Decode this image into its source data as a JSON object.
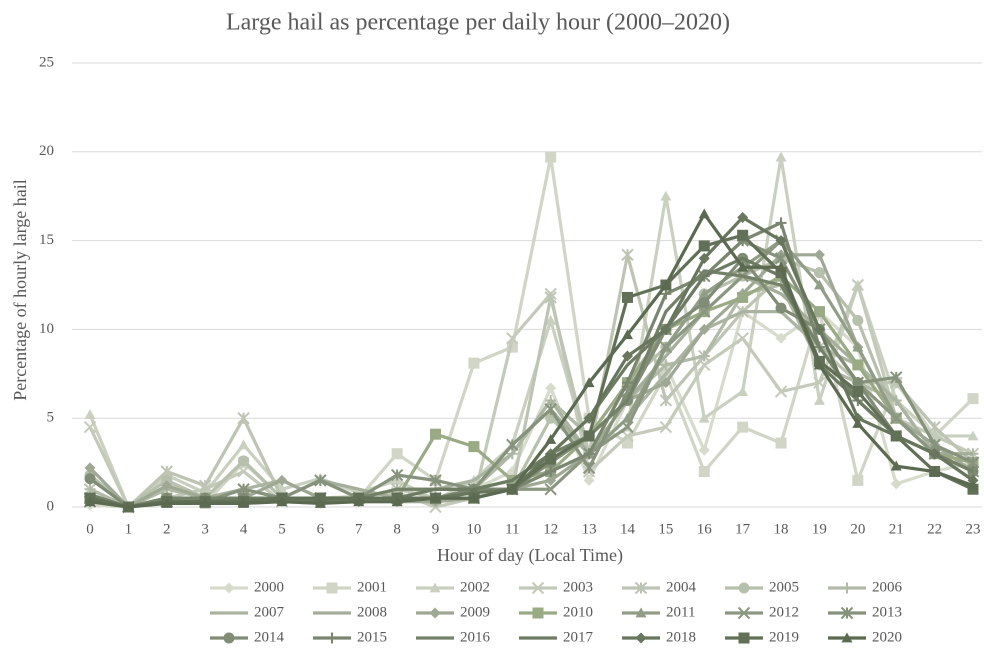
{
  "chart_data": {
    "type": "line",
    "title": "Large hail as percentage per daily hour (2000–2020)",
    "x_label": "Hour of day (Local Time)",
    "y_label": "Percentage of  hourly large hail",
    "categories": [
      "0",
      "1",
      "2",
      "3",
      "4",
      "5",
      "6",
      "7",
      "8",
      "9",
      "10",
      "11",
      "12",
      "13",
      "14",
      "15",
      "16",
      "17",
      "18",
      "19",
      "20",
      "21",
      "22",
      "23"
    ],
    "ylim": [
      0,
      25
    ],
    "yticks": [
      0,
      5,
      10,
      15,
      20,
      25
    ],
    "grid": true,
    "legend": "bottom",
    "series": [
      {
        "name": "2000",
        "color": "#d6dbcc",
        "marker": "diamond",
        "values": [
          0.1,
          0,
          0.3,
          0.2,
          0.5,
          0.3,
          0.2,
          0.3,
          0.4,
          0.5,
          1,
          2,
          6.7,
          1.5,
          6,
          8,
          3.2,
          11,
          9.5,
          11,
          9,
          1.3,
          2,
          2.5
        ]
      },
      {
        "name": "2001",
        "color": "#d0d5c6",
        "marker": "square",
        "values": [
          0.5,
          0,
          1.5,
          0.2,
          2.5,
          0.5,
          0.5,
          0.5,
          3,
          1.5,
          8.1,
          9,
          19.7,
          5,
          3.6,
          7.5,
          2,
          4.5,
          3.6,
          11,
          1.5,
          7,
          4,
          6.1
        ]
      },
      {
        "name": "2002",
        "color": "#cad0c0",
        "marker": "triangle",
        "values": [
          5.2,
          0,
          1.8,
          0.8,
          3.5,
          1,
          1.6,
          0.8,
          1.5,
          0.4,
          1.5,
          3.5,
          10.5,
          3,
          4.5,
          17.5,
          5,
          6.5,
          19.7,
          6,
          12.5,
          6,
          4,
          4
        ]
      },
      {
        "name": "2003",
        "color": "#c4cab9",
        "marker": "x",
        "values": [
          4.5,
          0,
          0.5,
          1,
          2,
          0.3,
          0.5,
          0.6,
          0.8,
          0,
          0.5,
          9.5,
          12,
          2,
          4,
          4.5,
          8,
          9.5,
          6.5,
          7,
          12.5,
          5,
          4,
          3
        ]
      },
      {
        "name": "2004",
        "color": "#bdc4b3",
        "marker": "asterisk",
        "values": [
          1,
          0,
          2,
          1.2,
          5,
          0.5,
          0.5,
          0.5,
          1,
          0.5,
          1,
          1,
          11.8,
          3,
          14.2,
          6,
          8.5,
          11,
          13,
          9,
          7,
          7,
          4.5,
          2.5
        ]
      },
      {
        "name": "2005",
        "color": "#b7bfad",
        "marker": "circle",
        "values": [
          1.8,
          0,
          1.5,
          0.5,
          2.6,
          0.5,
          0.5,
          0.4,
          0.5,
          0.3,
          0.5,
          1,
          5,
          3,
          7,
          9,
          12,
          13,
          14,
          13.2,
          10.5,
          5,
          3,
          2.5
        ]
      },
      {
        "name": "2006",
        "color": "#b1b9a7",
        "marker": "plus",
        "values": [
          1,
          0,
          1,
          0.5,
          1,
          0.5,
          1.5,
          0.5,
          1,
          1,
          1,
          3,
          6,
          4,
          6,
          8,
          8.5,
          12,
          12.5,
          8,
          7,
          6,
          3,
          3
        ]
      },
      {
        "name": "2007",
        "color": "#abb3a1",
        "marker": "none",
        "values": [
          0.5,
          0,
          0.5,
          0.5,
          1,
          1.5,
          0.5,
          0.5,
          1,
          1,
          1.5,
          3,
          6,
          3,
          5,
          7.5,
          10,
          11,
          11,
          9,
          8,
          6,
          3,
          2
        ]
      },
      {
        "name": "2008",
        "color": "#a5ae9a",
        "marker": "none",
        "values": [
          0.5,
          0,
          0.3,
          0.5,
          1,
          0.5,
          1.5,
          1,
          0.5,
          1,
          1,
          3.5,
          5.5,
          3,
          6,
          8.5,
          11,
          13,
          12,
          10,
          8,
          5,
          3,
          3
        ]
      },
      {
        "name": "2009",
        "color": "#9fa894",
        "marker": "diamond",
        "values": [
          2.2,
          0,
          1.2,
          0.5,
          0.5,
          1.5,
          0.5,
          0.3,
          0.3,
          0.3,
          0.5,
          1,
          1.5,
          3,
          6,
          7,
          10,
          12,
          14.2,
          14.2,
          9,
          5,
          3.5,
          2
        ]
      },
      {
        "name": "2010",
        "color": "#9aaa85",
        "marker": "square",
        "values": [
          0.5,
          0,
          0.5,
          0.5,
          0.5,
          0.5,
          0.5,
          0.5,
          0.5,
          4.1,
          3.4,
          1.5,
          2,
          4,
          7,
          10,
          11,
          11.8,
          13,
          11,
          8,
          5,
          3,
          2.5
        ]
      },
      {
        "name": "2011",
        "color": "#929d88",
        "marker": "triangle",
        "values": [
          0.5,
          0,
          0.5,
          0.3,
          0.3,
          0.5,
          0.3,
          0.5,
          0.5,
          0.5,
          0.5,
          1,
          2,
          3,
          5,
          9,
          12,
          13.5,
          15,
          12.5,
          9,
          5,
          3,
          2
        ]
      },
      {
        "name": "2012",
        "color": "#8c9782",
        "marker": "x",
        "values": [
          0.5,
          0,
          0.3,
          0.3,
          0.5,
          0.5,
          0.5,
          0.5,
          0.5,
          0.5,
          0.5,
          1,
          1,
          3,
          4.5,
          9,
          11,
          13,
          15,
          10,
          7,
          5,
          3,
          2
        ]
      },
      {
        "name": "2013",
        "color": "#86927b",
        "marker": "asterisk",
        "values": [
          0.3,
          0,
          0.3,
          0.3,
          1,
          0.5,
          1.5,
          0.5,
          1.8,
          1.5,
          1,
          3.5,
          5.5,
          2.2,
          6.5,
          10,
          13,
          15,
          14,
          10,
          7,
          7.3,
          3.5,
          2.5
        ]
      },
      {
        "name": "2014",
        "color": "#808c75",
        "marker": "circle",
        "values": [
          1.6,
          0,
          0.5,
          0.5,
          0.5,
          0.5,
          0.5,
          0.5,
          0.5,
          0.5,
          1,
          1,
          2.5,
          4,
          6,
          10,
          11.5,
          14,
          11.2,
          10,
          7,
          4,
          3,
          2
        ]
      },
      {
        "name": "2015",
        "color": "#7a866f",
        "marker": "plus",
        "values": [
          0.5,
          0,
          0.5,
          0.5,
          0.5,
          0.5,
          0.5,
          0.5,
          0.5,
          0.5,
          1,
          1,
          2,
          3,
          7,
          12,
          13,
          15,
          16,
          9,
          6,
          4,
          3,
          2
        ]
      },
      {
        "name": "2016",
        "color": "#748169",
        "marker": "none",
        "values": [
          0.7,
          0,
          0.5,
          0.5,
          0.5,
          0.5,
          0.5,
          0.5,
          1,
          1,
          1,
          1.5,
          3,
          4,
          6,
          11,
          13.3,
          13,
          12.5,
          9,
          6,
          4,
          3,
          2
        ]
      },
      {
        "name": "2017",
        "color": "#6d7b63",
        "marker": "none",
        "values": [
          0.5,
          0,
          0.3,
          0.3,
          0.5,
          0.5,
          0.5,
          0.5,
          0.5,
          1,
          1,
          1.5,
          3,
          5,
          8,
          10,
          13,
          14,
          13,
          8,
          6,
          4,
          3,
          1.5
        ]
      },
      {
        "name": "2018",
        "color": "#67765c",
        "marker": "diamond",
        "values": [
          0.5,
          0,
          0.3,
          0.3,
          0.3,
          0.5,
          0.3,
          0.5,
          0.5,
          0.5,
          0.8,
          1,
          3,
          5,
          8.5,
          10,
          14,
          16.3,
          15,
          10,
          5,
          4,
          3,
          1.5
        ]
      },
      {
        "name": "2019",
        "color": "#617056",
        "marker": "square",
        "values": [
          0.5,
          0,
          0.3,
          0.3,
          0.3,
          0.5,
          0.5,
          0.5,
          0.5,
          0.5,
          0.5,
          1,
          2.7,
          4,
          11.8,
          12.5,
          14.7,
          15.3,
          13.2,
          8.2,
          6.5,
          4,
          2,
          1
        ]
      },
      {
        "name": "2020",
        "color": "#5b6a50",
        "marker": "triangle",
        "values": [
          0.3,
          0,
          0.2,
          0.2,
          0.2,
          0.3,
          0.2,
          0.3,
          0.3,
          0.5,
          0.5,
          1,
          3.8,
          7,
          9.7,
          12.5,
          16.5,
          13.5,
          13.5,
          8,
          4.7,
          2.3,
          2,
          1.2
        ]
      }
    ]
  }
}
